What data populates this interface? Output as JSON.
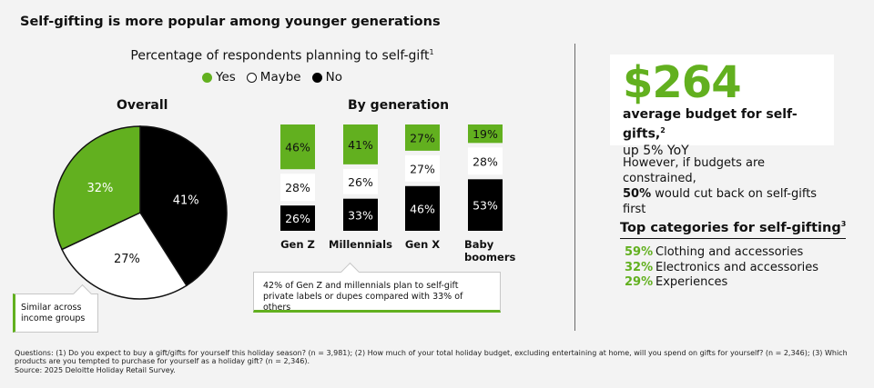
{
  "title": "Self-gifting is more popular among younger generations",
  "chart_heading": "Percentage of respondents planning to self-gift",
  "chart_heading_sup": "1",
  "legend": [
    {
      "label": "Yes",
      "color": "#62b01f"
    },
    {
      "label": "Maybe",
      "color": "#ffffff"
    },
    {
      "label": "No",
      "color": "#000000"
    }
  ],
  "chart_data": [
    {
      "type": "pie",
      "title": "Overall",
      "categories": [
        "Yes",
        "Maybe",
        "No"
      ],
      "values": [
        32,
        27,
        41
      ],
      "labels": [
        "32%",
        "27%",
        "41%"
      ],
      "colors": [
        "#62b01f",
        "#ffffff",
        "#000000"
      ],
      "annotation": "Similar across income groups"
    },
    {
      "type": "bar",
      "stacked": true,
      "title": "By generation",
      "categories": [
        "Gen Z",
        "Millennials",
        "Gen X",
        "Baby boomers"
      ],
      "series": [
        {
          "name": "Yes",
          "color": "#62b01f",
          "values": [
            46,
            41,
            27,
            19
          ]
        },
        {
          "name": "Maybe",
          "color": "#ffffff",
          "values": [
            28,
            26,
            27,
            28
          ]
        },
        {
          "name": "No",
          "color": "#000000",
          "values": [
            26,
            33,
            46,
            53
          ]
        }
      ],
      "annotation": "42% of Gen Z and millennials plan to self-gift private labels or dupes compared with 33% of others"
    }
  ],
  "budget": {
    "amount": "$264",
    "label": "average budget for self-gifts,",
    "label_sup": "2",
    "change": "up 5% YoY"
  },
  "constrained": {
    "line1": "However, if budgets are constrained,",
    "pct": "50%",
    "line2": " would cut back on self-gifts first"
  },
  "top_categories": {
    "heading": "Top categories for self-gifting",
    "heading_sup": "3",
    "items": [
      {
        "pct": "59%",
        "label": "Clothing and accessories"
      },
      {
        "pct": "32%",
        "label": "Electronics and accessories"
      },
      {
        "pct": "29%",
        "label": "Experiences"
      }
    ]
  },
  "footer": {
    "questions": "Questions: (1) Do you expect to buy a gift/gifts for yourself this holiday season? (n = 3,981); (2) How much of your total holiday budget, excluding entertaining at home, will you spend on gifts for yourself? (n = 2,346); (3) Which products are you tempted to purchase for yourself as a holiday gift? (n = 2,346).",
    "source": "Source: 2025 Deloitte Holiday Retail Survey."
  }
}
